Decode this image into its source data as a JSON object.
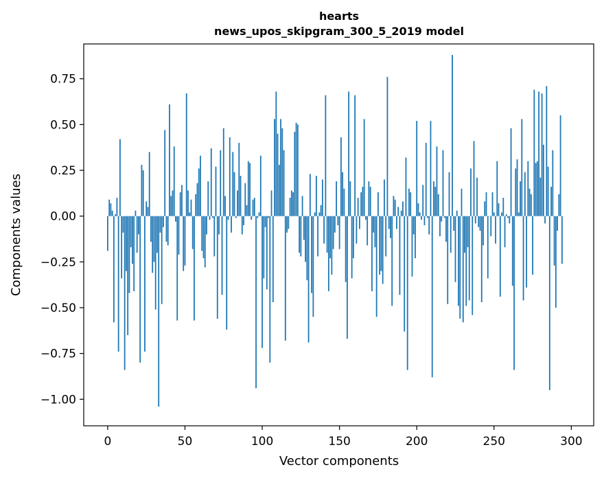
{
  "chart_data": {
    "type": "bar",
    "title": "hearts",
    "subtitle": "news_upos_skipgram_300_5_2019 model",
    "xlabel": "Vector components",
    "ylabel": "Components values",
    "xlim": [
      -15.5,
      314.5
    ],
    "ylim": [
      -1.145,
      0.94
    ],
    "xticks": [
      0,
      50,
      100,
      150,
      200,
      250,
      300
    ],
    "xtick_labels": [
      "0",
      "50",
      "100",
      "150",
      "200",
      "250",
      "300"
    ],
    "yticks": [
      0.75,
      0.5,
      0.25,
      0.0,
      -0.25,
      -0.5,
      -0.75,
      -1.0
    ],
    "ytick_labels": [
      "0.75",
      "0.50",
      "0.25",
      "0.00",
      "−0.25",
      "−0.50",
      "−0.75",
      "−1.00"
    ],
    "bar_color": "#1f77b4",
    "series": [
      {
        "name": "hearts",
        "values": [
          -0.19,
          0.09,
          0.07,
          0.03,
          -0.58,
          0.01,
          0.1,
          -0.74,
          0.42,
          -0.34,
          -0.09,
          -0.84,
          -0.3,
          -0.65,
          -0.42,
          -0.17,
          -0.26,
          -0.41,
          0.03,
          -0.2,
          -0.1,
          -0.8,
          0.28,
          0.25,
          -0.74,
          0.08,
          0.05,
          0.35,
          -0.14,
          -0.31,
          -0.25,
          -0.51,
          -0.2,
          -1.04,
          -0.09,
          -0.48,
          -0.06,
          0.47,
          -0.14,
          -0.16,
          0.61,
          0.11,
          0.14,
          0.38,
          -0.03,
          -0.57,
          -0.21,
          0.13,
          0.17,
          -0.3,
          -0.27,
          0.67,
          0.14,
          0.02,
          0.09,
          -0.18,
          -0.57,
          0.12,
          0.18,
          0.26,
          0.33,
          -0.19,
          -0.23,
          -0.28,
          -0.1,
          0.19,
          -0.02,
          0.37,
          -0.01,
          -0.22,
          0.27,
          -0.56,
          -0.1,
          0.36,
          -0.43,
          0.48,
          0.11,
          -0.62,
          -0.02,
          0.43,
          -0.09,
          0.35,
          0.24,
          -0.01,
          0.14,
          0.4,
          0.22,
          -0.1,
          -0.05,
          0.18,
          0.06,
          0.3,
          0.29,
          -0.02,
          0.09,
          0.1,
          -0.94,
          -0.01,
          0.02,
          0.33,
          -0.72,
          -0.34,
          -0.06,
          -0.4,
          -0.01,
          -0.8,
          0.14,
          -0.47,
          0.53,
          0.68,
          0.45,
          0.28,
          0.53,
          0.48,
          0.36,
          -0.68,
          -0.09,
          -0.07,
          0.1,
          0.14,
          0.13,
          0.46,
          0.51,
          0.5,
          -0.2,
          -0.22,
          0.11,
          -0.13,
          -0.25,
          -0.35,
          -0.69,
          0.23,
          -0.42,
          -0.55,
          0.02,
          0.22,
          -0.22,
          0.02,
          0.06,
          0.2,
          -0.15,
          0.66,
          -0.2,
          -0.41,
          -0.23,
          -0.32,
          -0.18,
          -0.09,
          0.19,
          -0.05,
          -0.18,
          0.43,
          0.24,
          0.15,
          -0.36,
          -0.67,
          0.68,
          0.19,
          -0.34,
          -0.23,
          0.66,
          -0.15,
          0.1,
          -0.07,
          0.13,
          0.16,
          0.53,
          -0.02,
          -0.16,
          0.19,
          0.16,
          -0.41,
          -0.09,
          -0.17,
          -0.55,
          0.13,
          -0.32,
          -0.3,
          -0.37,
          0.2,
          -0.22,
          0.76,
          -0.07,
          -0.12,
          -0.49,
          0.11,
          0.09,
          -0.07,
          0.05,
          -0.43,
          0.03,
          0.08,
          -0.63,
          0.32,
          -0.84,
          0.15,
          0.13,
          -0.33,
          -0.1,
          -0.23,
          0.52,
          0.07,
          0.02,
          -0.02,
          0.17,
          -0.05,
          0.4,
          -0.01,
          -0.1,
          0.52,
          -0.88,
          0.19,
          0.16,
          0.38,
          0.12,
          -0.11,
          -0.03,
          0.36,
          -0.01,
          -0.14,
          -0.48,
          0.24,
          -0.2,
          0.88,
          -0.08,
          -0.36,
          0.03,
          -0.49,
          -0.56,
          0.15,
          -0.58,
          -0.2,
          -0.49,
          -0.17,
          -0.46,
          0.26,
          -0.54,
          0.41,
          -0.04,
          0.21,
          -0.06,
          -0.08,
          -0.47,
          -0.16,
          0.08,
          0.13,
          -0.34,
          0.0,
          -0.11,
          0.13,
          0.02,
          -0.15,
          0.3,
          0.07,
          -0.44,
          0.02,
          0.1,
          -0.17,
          0.01,
          -0.01,
          -0.04,
          0.48,
          -0.38,
          -0.84,
          0.26,
          0.31,
          0.02,
          0.19,
          0.53,
          -0.46,
          0.24,
          -0.39,
          0.3,
          0.15,
          0.12,
          -0.32,
          0.69,
          0.29,
          0.3,
          0.68,
          0.21,
          0.67,
          0.39,
          -0.04,
          0.71,
          0.27,
          -0.95,
          0.16,
          0.36,
          -0.27,
          -0.5,
          -0.08,
          0.12,
          0.55,
          -0.26
        ]
      }
    ]
  }
}
